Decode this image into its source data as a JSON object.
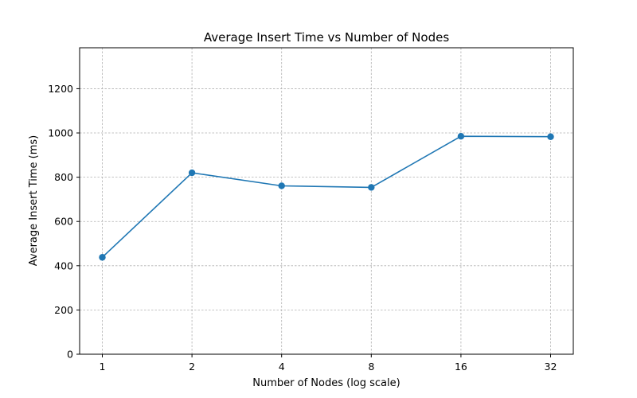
{
  "chart_data": {
    "type": "line",
    "title": "Average Insert Time vs Number of Nodes",
    "xlabel": "Number of Nodes (log scale)",
    "ylabel": "Average Insert Time (ms)",
    "x_scale": "log2",
    "x": [
      1,
      2,
      4,
      8,
      16,
      32
    ],
    "x_tick_labels": [
      "1",
      "2",
      "4",
      "8",
      "16",
      "32"
    ],
    "y_ticks": [
      0,
      200,
      400,
      600,
      800,
      1000,
      1200
    ],
    "ylim": [
      0,
      1385
    ],
    "grid": true,
    "series": [
      {
        "values": [
          438,
          820,
          761,
          754,
          985,
          983
        ],
        "color": "#1f77b4",
        "marker": "circle"
      }
    ]
  }
}
